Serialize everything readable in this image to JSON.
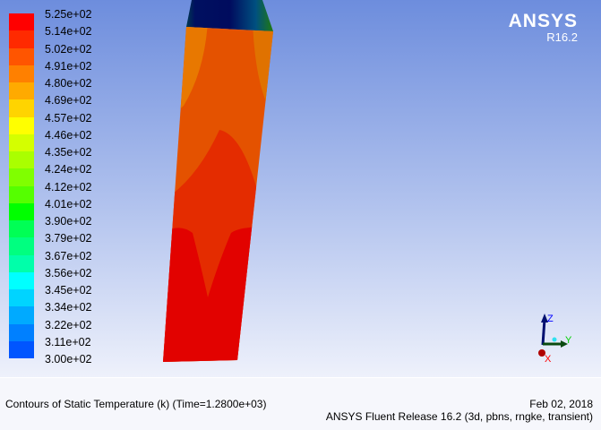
{
  "logo": {
    "brand": "ANSYS",
    "version": "R16.2"
  },
  "legend": {
    "labels": [
      "5.25e+02",
      "5.14e+02",
      "5.02e+02",
      "4.91e+02",
      "4.80e+02",
      "4.69e+02",
      "4.57e+02",
      "4.46e+02",
      "4.35e+02",
      "4.24e+02",
      "4.12e+02",
      "4.01e+02",
      "3.90e+02",
      "3.79e+02",
      "3.67e+02",
      "3.56e+02",
      "3.45e+02",
      "3.34e+02",
      "3.22e+02",
      "3.11e+02",
      "3.00e+02"
    ],
    "colors": [
      "#ff0000",
      "#ff2a00",
      "#ff5500",
      "#ff8000",
      "#ffaa00",
      "#ffd400",
      "#ffff00",
      "#d4ff00",
      "#aaff00",
      "#80ff00",
      "#55ff00",
      "#00ff00",
      "#00ff55",
      "#00ff80",
      "#00ffaa",
      "#00ffff",
      "#00d4ff",
      "#00aaff",
      "#0080ff",
      "#0055ff",
      "#0000ff"
    ]
  },
  "axes": {
    "x": "X",
    "y": "Y",
    "z": "Z"
  },
  "footer": {
    "title": "Contours of Static Temperature (k)  (Time=1.2800e+03)",
    "date": "Feb 02, 2018",
    "release": "ANSYS Fluent Release 16.2 (3d, pbns, rngke, transient)"
  }
}
